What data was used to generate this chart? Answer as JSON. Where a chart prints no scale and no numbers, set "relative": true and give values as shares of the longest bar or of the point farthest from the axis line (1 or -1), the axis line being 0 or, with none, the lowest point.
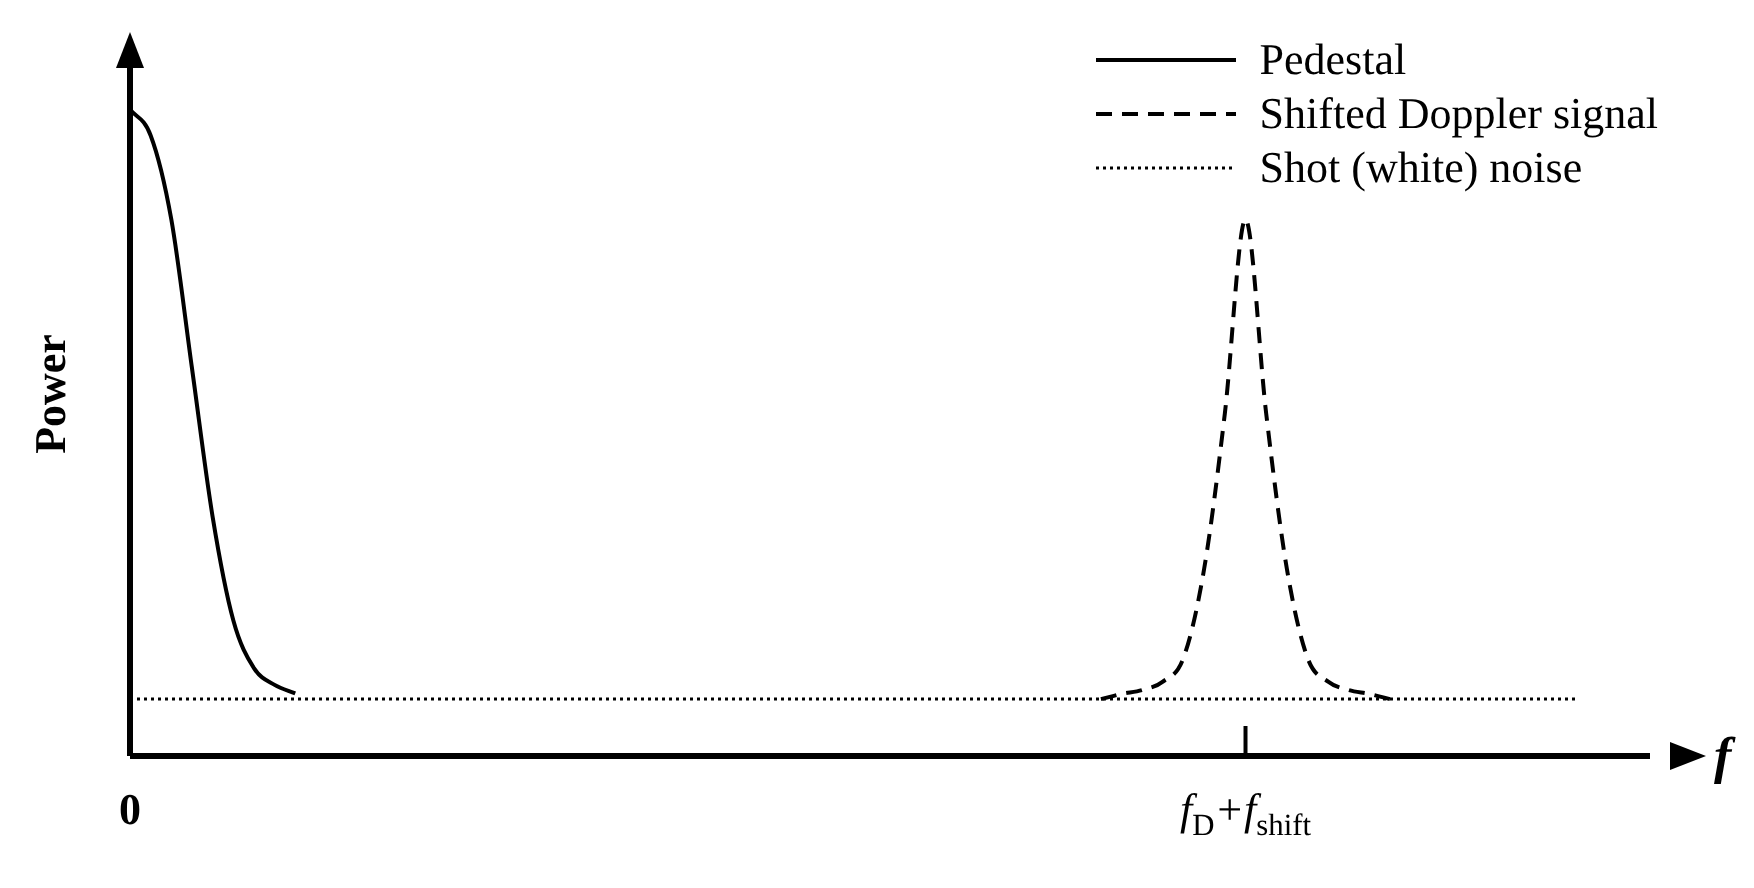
{
  "chart_data": {
    "type": "line",
    "relative": true,
    "ylabel": "Power",
    "xlabel": "f",
    "legend": "top right",
    "marker": "none",
    "categories": [
      "0",
      null,
      null,
      null,
      null,
      null,
      null,
      null,
      null,
      null,
      null,
      null,
      null,
      null,
      null,
      null,
      null,
      null,
      null,
      null,
      null,
      null,
      null,
      null,
      null,
      null,
      null,
      null,
      null,
      null,
      null,
      null,
      null,
      null,
      null,
      null,
      null,
      null,
      null,
      null,
      null,
      null,
      null,
      null,
      null,
      null,
      null,
      null,
      null,
      null,
      null,
      null,
      null,
      null,
      "f$_{D}$+f$_{shift}$",
      null,
      null,
      null,
      null,
      null,
      null,
      null,
      null,
      null,
      null,
      null,
      null,
      null,
      null,
      null,
      null,
      null,
      null,
      null
    ],
    "series": [
      {
        "name": "Pedestal",
        "color": "#000000",
        "line_style": "solid",
        "values": [
          1.0,
          0.96,
          0.83,
          0.6,
          0.37,
          0.21,
          0.136,
          0.11,
          0.097,
          null,
          null,
          null,
          null,
          null,
          null,
          null,
          null,
          null,
          null,
          null,
          null,
          null,
          null,
          null,
          null,
          null,
          null,
          null,
          null,
          null,
          null,
          null,
          null,
          null,
          null,
          null,
          null,
          null,
          null,
          null,
          null,
          null,
          null,
          null,
          null,
          null,
          null,
          null,
          null,
          null,
          null,
          null,
          null,
          null,
          null,
          null,
          null,
          null,
          null,
          null,
          null,
          null,
          null,
          null,
          null,
          null,
          null,
          null,
          null,
          null,
          null,
          null,
          null,
          null
        ]
      },
      {
        "name": "Shifted Doppler signal",
        "color": "#000000",
        "line_style": "dashed",
        "values": [
          null,
          null,
          null,
          null,
          null,
          null,
          null,
          null,
          null,
          null,
          null,
          null,
          null,
          null,
          null,
          null,
          null,
          null,
          null,
          null,
          null,
          null,
          null,
          null,
          null,
          null,
          null,
          null,
          null,
          null,
          null,
          null,
          null,
          null,
          null,
          null,
          null,
          null,
          null,
          null,
          null,
          null,
          null,
          null,
          null,
          null,
          null,
          0.088,
          0.096,
          0.102,
          0.115,
          0.152,
          0.29,
          0.53,
          0.83,
          0.53,
          0.29,
          0.152,
          0.115,
          0.102,
          0.096,
          0.088,
          null,
          null,
          null,
          null,
          null,
          null,
          null,
          null,
          null,
          null,
          null,
          null
        ]
      },
      {
        "name": "Shot (white) noise",
        "color": "#000000",
        "line_style": "dotted",
        "values": [
          0.088,
          0.088,
          0.088,
          0.088,
          0.088,
          0.088,
          0.088,
          0.088,
          0.088,
          0.088,
          0.088,
          0.088,
          0.088,
          0.088,
          0.088,
          0.088,
          0.088,
          0.088,
          0.088,
          0.088,
          0.088,
          0.088,
          0.088,
          0.088,
          0.088,
          0.088,
          0.088,
          0.088,
          0.088,
          0.088,
          0.088,
          0.088,
          0.088,
          0.088,
          0.088,
          0.088,
          0.088,
          0.088,
          0.088,
          0.088,
          0.088,
          0.088,
          0.088,
          0.088,
          0.088,
          0.088,
          0.088,
          0.088,
          0.088,
          0.088,
          0.088,
          0.088,
          0.088,
          0.088,
          0.088,
          0.088,
          0.088,
          0.088,
          0.088,
          0.088,
          0.088,
          0.088,
          0.088,
          0.088,
          0.088,
          0.088,
          0.088,
          0.088,
          0.088,
          0.088,
          0.088,
          null,
          null,
          null
        ]
      }
    ]
  }
}
